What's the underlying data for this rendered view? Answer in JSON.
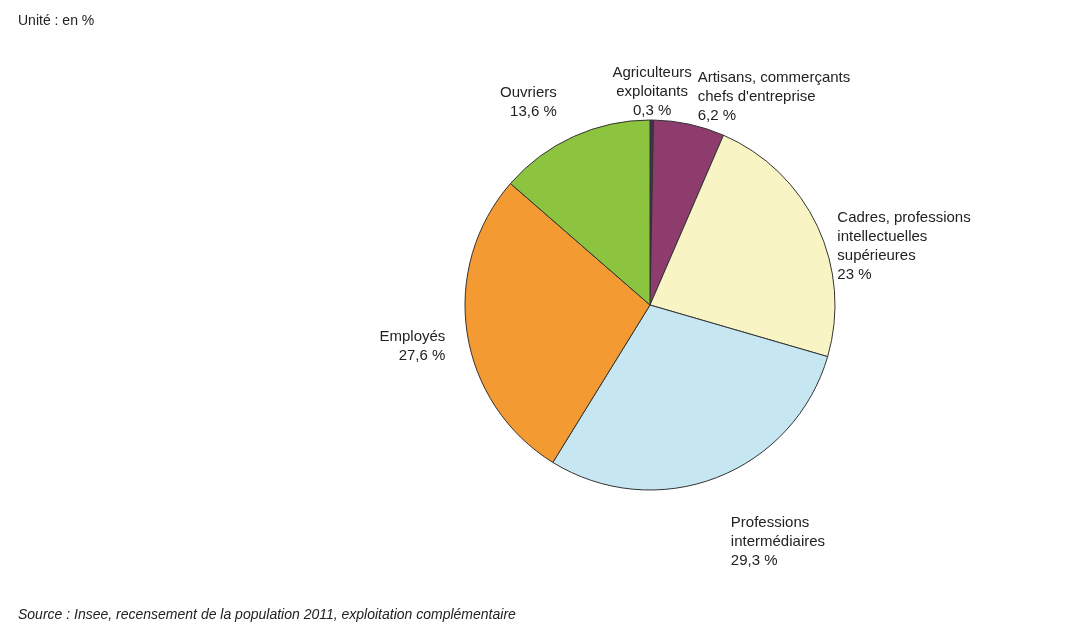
{
  "chart_data": {
    "type": "pie",
    "categories": [
      "Agriculteurs exploitants",
      "Artisans, commerçants chefs d'entreprise",
      "Cadres, professions intellectuelles supérieures",
      "Professions intermédiaires",
      "Employés",
      "Ouvriers"
    ],
    "values": [
      0.3,
      6.2,
      23,
      29.3,
      27.6,
      13.6
    ],
    "value_labels": [
      "0,3 %",
      "6,2 %",
      "23 %",
      "29,3 %",
      "27,6 %",
      "13,6 %"
    ],
    "colors": [
      "#3c3358",
      "#8e3b6e",
      "#f8f4c4",
      "#c6e7f1",
      "#f49a33",
      "#8cc43f"
    ],
    "annotations": [
      "Unité : en %",
      "Source : Insee, recensement de la population 2011, exploitation complémentaire"
    ],
    "legend": false
  }
}
